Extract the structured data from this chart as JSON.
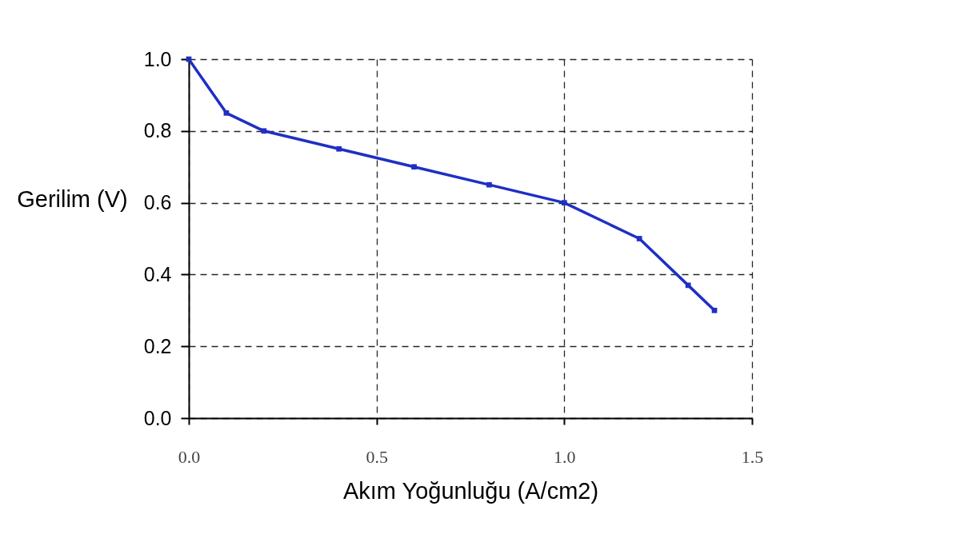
{
  "chart_data": {
    "type": "line",
    "xlabel": "Akım Yoğunluğu (A/cm2)",
    "ylabel": "Gerilim (V)",
    "x": [
      0,
      0.1,
      0.2,
      0.4,
      0.6,
      0.8,
      1.0,
      1.2,
      1.33,
      1.4
    ],
    "series": [
      {
        "color": "#1f2fc4",
        "values": [
          1.0,
          0.85,
          0.8,
          0.75,
          0.7,
          0.65,
          0.6,
          0.5,
          0.37,
          0.3
        ]
      }
    ],
    "xlim": [
      0,
      1.5
    ],
    "xticks": [
      {
        "value": 0,
        "label": "0.0"
      },
      {
        "value": 0.5,
        "label": "0.5"
      },
      {
        "value": 1,
        "label": "1.0"
      },
      {
        "value": 1.5,
        "label": "1.5"
      }
    ],
    "ylim": [
      0,
      1.0
    ],
    "yticks": [
      {
        "value": 0,
        "label": "0.0"
      },
      {
        "value": 0.2,
        "label": "0.2"
      },
      {
        "value": 0.4,
        "label": "0.4"
      },
      {
        "value": 0.6,
        "label": "0.6"
      },
      {
        "value": 0.8,
        "label": "0.8"
      },
      {
        "value": 1.0,
        "label": "1.0"
      }
    ],
    "grid": true,
    "marker": "square",
    "line_style": "solid"
  }
}
